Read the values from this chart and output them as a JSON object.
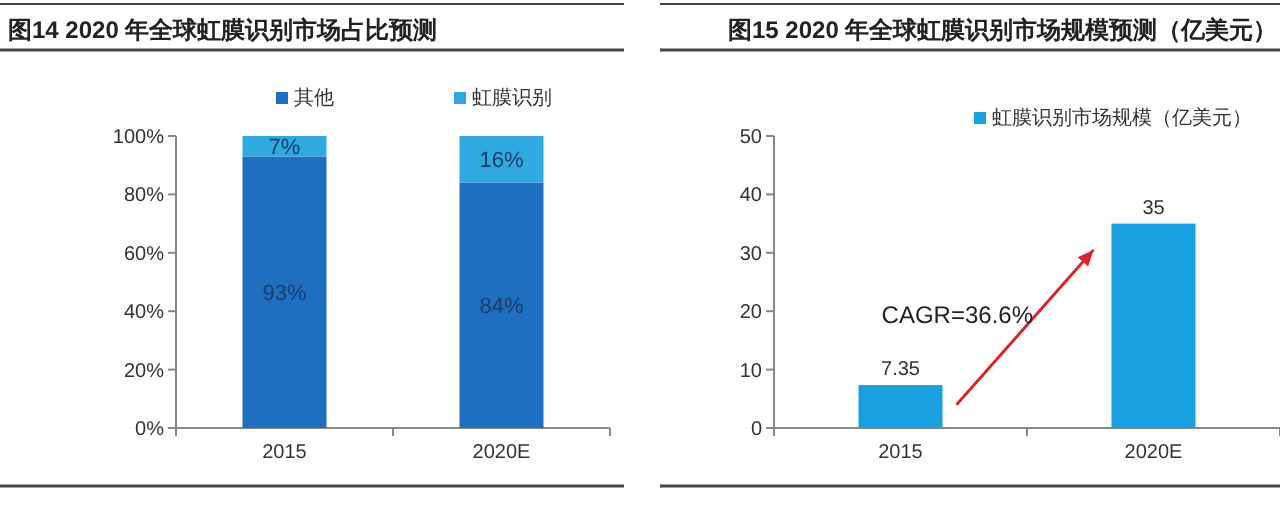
{
  "chart_data": [
    {
      "type": "bar",
      "title": "图14  2020 年全球虹膜识别市场占比预测",
      "categories": [
        "2015",
        "2020E"
      ],
      "stacked": true,
      "legend": "top",
      "series": [
        {
          "name": "其他",
          "color": "#1f6fc0",
          "values": [
            93,
            84
          ],
          "value_labels": [
            "93%",
            "84%"
          ]
        },
        {
          "name": "虹膜识别",
          "color": "#2eaae1",
          "values": [
            7,
            16
          ],
          "value_labels": [
            "7%",
            "16%"
          ]
        }
      ],
      "ylim": [
        0,
        100
      ],
      "yticks": [
        {
          "value": 0,
          "label": "0%"
        },
        {
          "value": 20,
          "label": "20%"
        },
        {
          "value": 40,
          "label": "40%"
        },
        {
          "value": 60,
          "label": "60%"
        },
        {
          "value": 80,
          "label": "80%"
        },
        {
          "value": 100,
          "label": "100%"
        }
      ]
    },
    {
      "type": "bar",
      "title": "图15 2020 年全球虹膜识别市场规模预测（亿美元）",
      "categories": [
        "2015",
        "2020E"
      ],
      "legend": "top",
      "data_labels": true,
      "series": [
        {
          "name": "虹膜识别市场规模（亿美元）",
          "color": "#1aa0e0",
          "values": [
            7.35,
            35
          ]
        }
      ],
      "ylim": [
        0,
        50
      ],
      "yticks": [
        0,
        10,
        20,
        30,
        40,
        50
      ],
      "annotations": [
        "CAGR=36.6%"
      ]
    }
  ]
}
